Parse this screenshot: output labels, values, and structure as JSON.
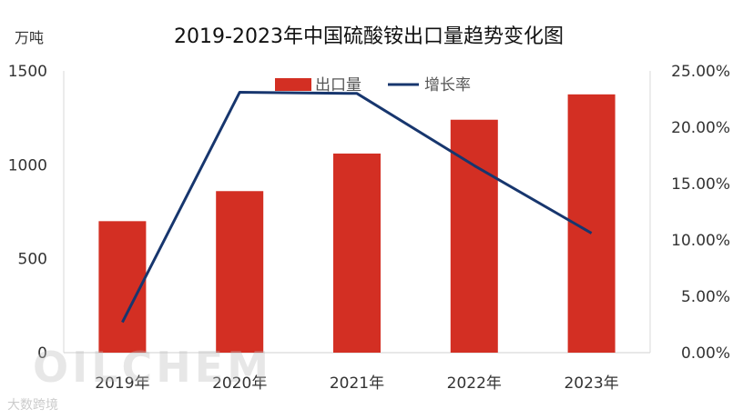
{
  "chart_data": {
    "type": "bar+line",
    "title": "2019-2023年中国硫酸铵出口量趋势变化图",
    "y_left_unit": "万吨",
    "categories": [
      "2019年",
      "2020年",
      "2021年",
      "2022年",
      "2023年"
    ],
    "series": [
      {
        "name": "出口量",
        "type": "bar",
        "axis": "left",
        "color": "#d32f23",
        "values": [
          700,
          860,
          1060,
          1240,
          1375
        ]
      },
      {
        "name": "增长率",
        "type": "line",
        "axis": "right",
        "color": "#17366e",
        "values": [
          2.7,
          23.1,
          23.0,
          16.6,
          10.6
        ]
      }
    ],
    "y_left": {
      "min": 0,
      "max": 1500,
      "ticks": [
        0,
        500,
        1000,
        1500
      ],
      "tick_labels": [
        "0",
        "500",
        "1000",
        "1500"
      ]
    },
    "y_right": {
      "min": 0,
      "max": 25,
      "ticks": [
        0,
        5,
        10,
        15,
        20,
        25
      ],
      "tick_labels": [
        "0.00%",
        "5.00%",
        "10.00%",
        "15.00%",
        "20.00%",
        "25.00%"
      ]
    },
    "legend_position": "top-center",
    "grid": false
  },
  "watermark": {
    "text": "OILCHEM",
    "subtext": "大数跨境"
  }
}
